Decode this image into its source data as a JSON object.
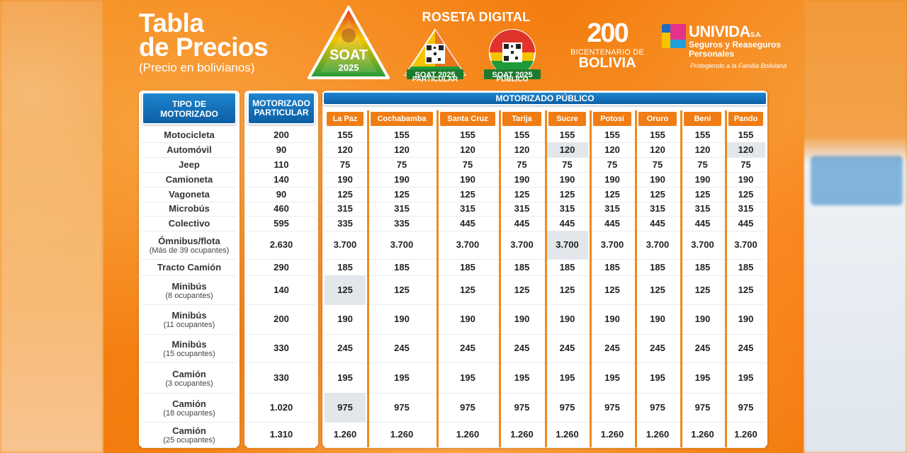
{
  "header": {
    "title_line1": "Tabla",
    "title_line2": "de Precios",
    "subtitle": "(Precio en bolivianos)",
    "soat_logo_text1": "SOAT",
    "soat_logo_text2": "2025",
    "roseta_title": "ROSETA DIGITAL",
    "roseta_particular_badge": "SOAT 2025",
    "roseta_particular_label": "PARTICULAR",
    "roseta_publico_badge": "SOAT 2025",
    "roseta_publico_label": "PÚBLICO",
    "bicentenario_num": "200",
    "bicentenario_small": "BICENTENARIO DE",
    "bicentenario_big": "BOLIVIA",
    "univida_name": "UNIVIDA",
    "univida_sa": "S.A.",
    "univida_tag1": "Seguros y Reaseguros",
    "univida_tag2": "Personales",
    "univida_slogan": "Protegiendo a la Familia Boliviana"
  },
  "table": {
    "col1_header": "TIPO DE MOTORIZADO",
    "col2_header": "MOTORIZADO PARTICULAR",
    "group_header": "MOTORIZADO PÚBLICO",
    "cities": [
      "La Paz",
      "Cochabamba",
      "Santa Cruz",
      "Tarija",
      "Sucre",
      "Potosí",
      "Oruro",
      "Beni",
      "Pando"
    ],
    "rows": [
      {
        "type": "Motocicleta",
        "note": "",
        "particular": "200",
        "publico": [
          "155",
          "155",
          "155",
          "155",
          "155",
          "155",
          "155",
          "155",
          "155"
        ]
      },
      {
        "type": "Automóvil",
        "note": "",
        "particular": "90",
        "publico": [
          "120",
          "120",
          "120",
          "120",
          "120",
          "120",
          "120",
          "120",
          "120"
        ]
      },
      {
        "type": "Jeep",
        "note": "",
        "particular": "110",
        "publico": [
          "75",
          "75",
          "75",
          "75",
          "75",
          "75",
          "75",
          "75",
          "75"
        ]
      },
      {
        "type": "Camioneta",
        "note": "",
        "particular": "140",
        "publico": [
          "190",
          "190",
          "190",
          "190",
          "190",
          "190",
          "190",
          "190",
          "190"
        ]
      },
      {
        "type": "Vagoneta",
        "note": "",
        "particular": "90",
        "publico": [
          "125",
          "125",
          "125",
          "125",
          "125",
          "125",
          "125",
          "125",
          "125"
        ]
      },
      {
        "type": "Microbús",
        "note": "",
        "particular": "460",
        "publico": [
          "315",
          "315",
          "315",
          "315",
          "315",
          "315",
          "315",
          "315",
          "315"
        ]
      },
      {
        "type": "Colectivo",
        "note": "",
        "particular": "595",
        "publico": [
          "335",
          "335",
          "445",
          "445",
          "445",
          "445",
          "445",
          "445",
          "445"
        ]
      },
      {
        "type": "Ómnibus/flota",
        "note": "(Más de 39 ocupantes)",
        "particular": "2.630",
        "publico": [
          "3.700",
          "3.700",
          "3.700",
          "3.700",
          "3.700",
          "3.700",
          "3.700",
          "3.700",
          "3.700"
        ]
      },
      {
        "type": "Tracto Camión",
        "note": "",
        "particular": "290",
        "publico": [
          "185",
          "185",
          "185",
          "185",
          "185",
          "185",
          "185",
          "185",
          "185"
        ]
      },
      {
        "type": "Minibús",
        "note": "(8 ocupantes)",
        "particular": "140",
        "publico": [
          "125",
          "125",
          "125",
          "125",
          "125",
          "125",
          "125",
          "125",
          "125"
        ]
      },
      {
        "type": "Minibús",
        "note": "(11 ocupantes)",
        "particular": "200",
        "publico": [
          "190",
          "190",
          "190",
          "190",
          "190",
          "190",
          "190",
          "190",
          "190"
        ]
      },
      {
        "type": "Minibús",
        "note": "(15 ocupantes)",
        "particular": "330",
        "publico": [
          "245",
          "245",
          "245",
          "245",
          "245",
          "245",
          "245",
          "245",
          "245"
        ]
      },
      {
        "type": "Camión",
        "note": "(3 ocupantes)",
        "particular": "330",
        "publico": [
          "195",
          "195",
          "195",
          "195",
          "195",
          "195",
          "195",
          "195",
          "195"
        ]
      },
      {
        "type": "Camión",
        "note": "(18 ocupantes)",
        "particular": "1.020",
        "publico": [
          "975",
          "975",
          "975",
          "975",
          "975",
          "975",
          "975",
          "975",
          "975"
        ]
      },
      {
        "type": "Camión",
        "note": "(25 ocupantes)",
        "particular": "1.310",
        "publico": [
          "1.260",
          "1.260",
          "1.260",
          "1.260",
          "1.260",
          "1.260",
          "1.260",
          "1.260",
          "1.260"
        ]
      }
    ]
  },
  "colors": {
    "orange": "#f07d14",
    "blue": "#0d5fa5",
    "white": "#ffffff"
  }
}
